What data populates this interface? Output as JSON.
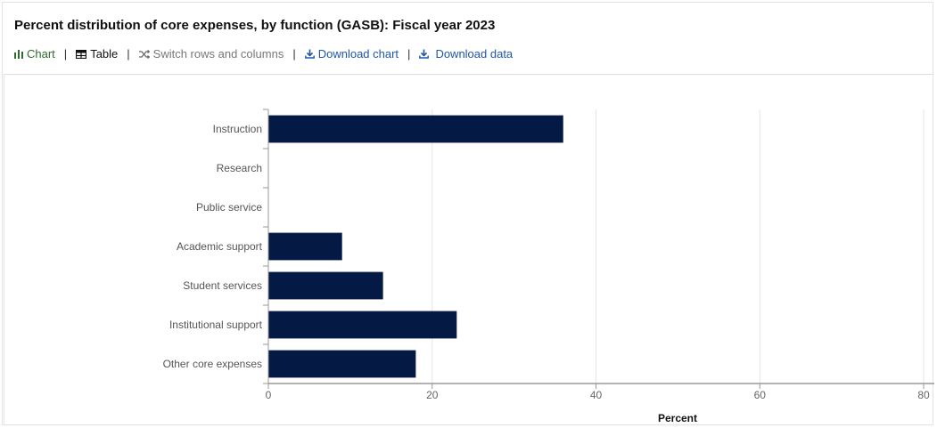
{
  "header": {
    "title": "Percent distribution of core expenses, by function (GASB): Fiscal year 2023"
  },
  "toolbar": {
    "chart_label": "Chart",
    "table_label": "Table",
    "switch_label": "Switch rows and columns",
    "download_chart_label": "Download chart",
    "download_data_label": "Download data",
    "separator": "|"
  },
  "colors": {
    "bar": "#041a45",
    "chart_active": "#2e6b2e",
    "link": "#1f56a8"
  },
  "chart_data": {
    "type": "bar",
    "orientation": "horizontal",
    "title": "Percent distribution of core expenses, by function (GASB): Fiscal year 2023",
    "xlabel": "Percent",
    "ylabel": "",
    "xlim": [
      0,
      80
    ],
    "xticks": [
      0,
      20,
      40,
      60,
      80
    ],
    "grid": true,
    "categories": [
      "Instruction",
      "Research",
      "Public service",
      "Academic support",
      "Student services",
      "Institutional support",
      "Other core expenses"
    ],
    "values": [
      36,
      0,
      0,
      9,
      14,
      23,
      18
    ]
  }
}
